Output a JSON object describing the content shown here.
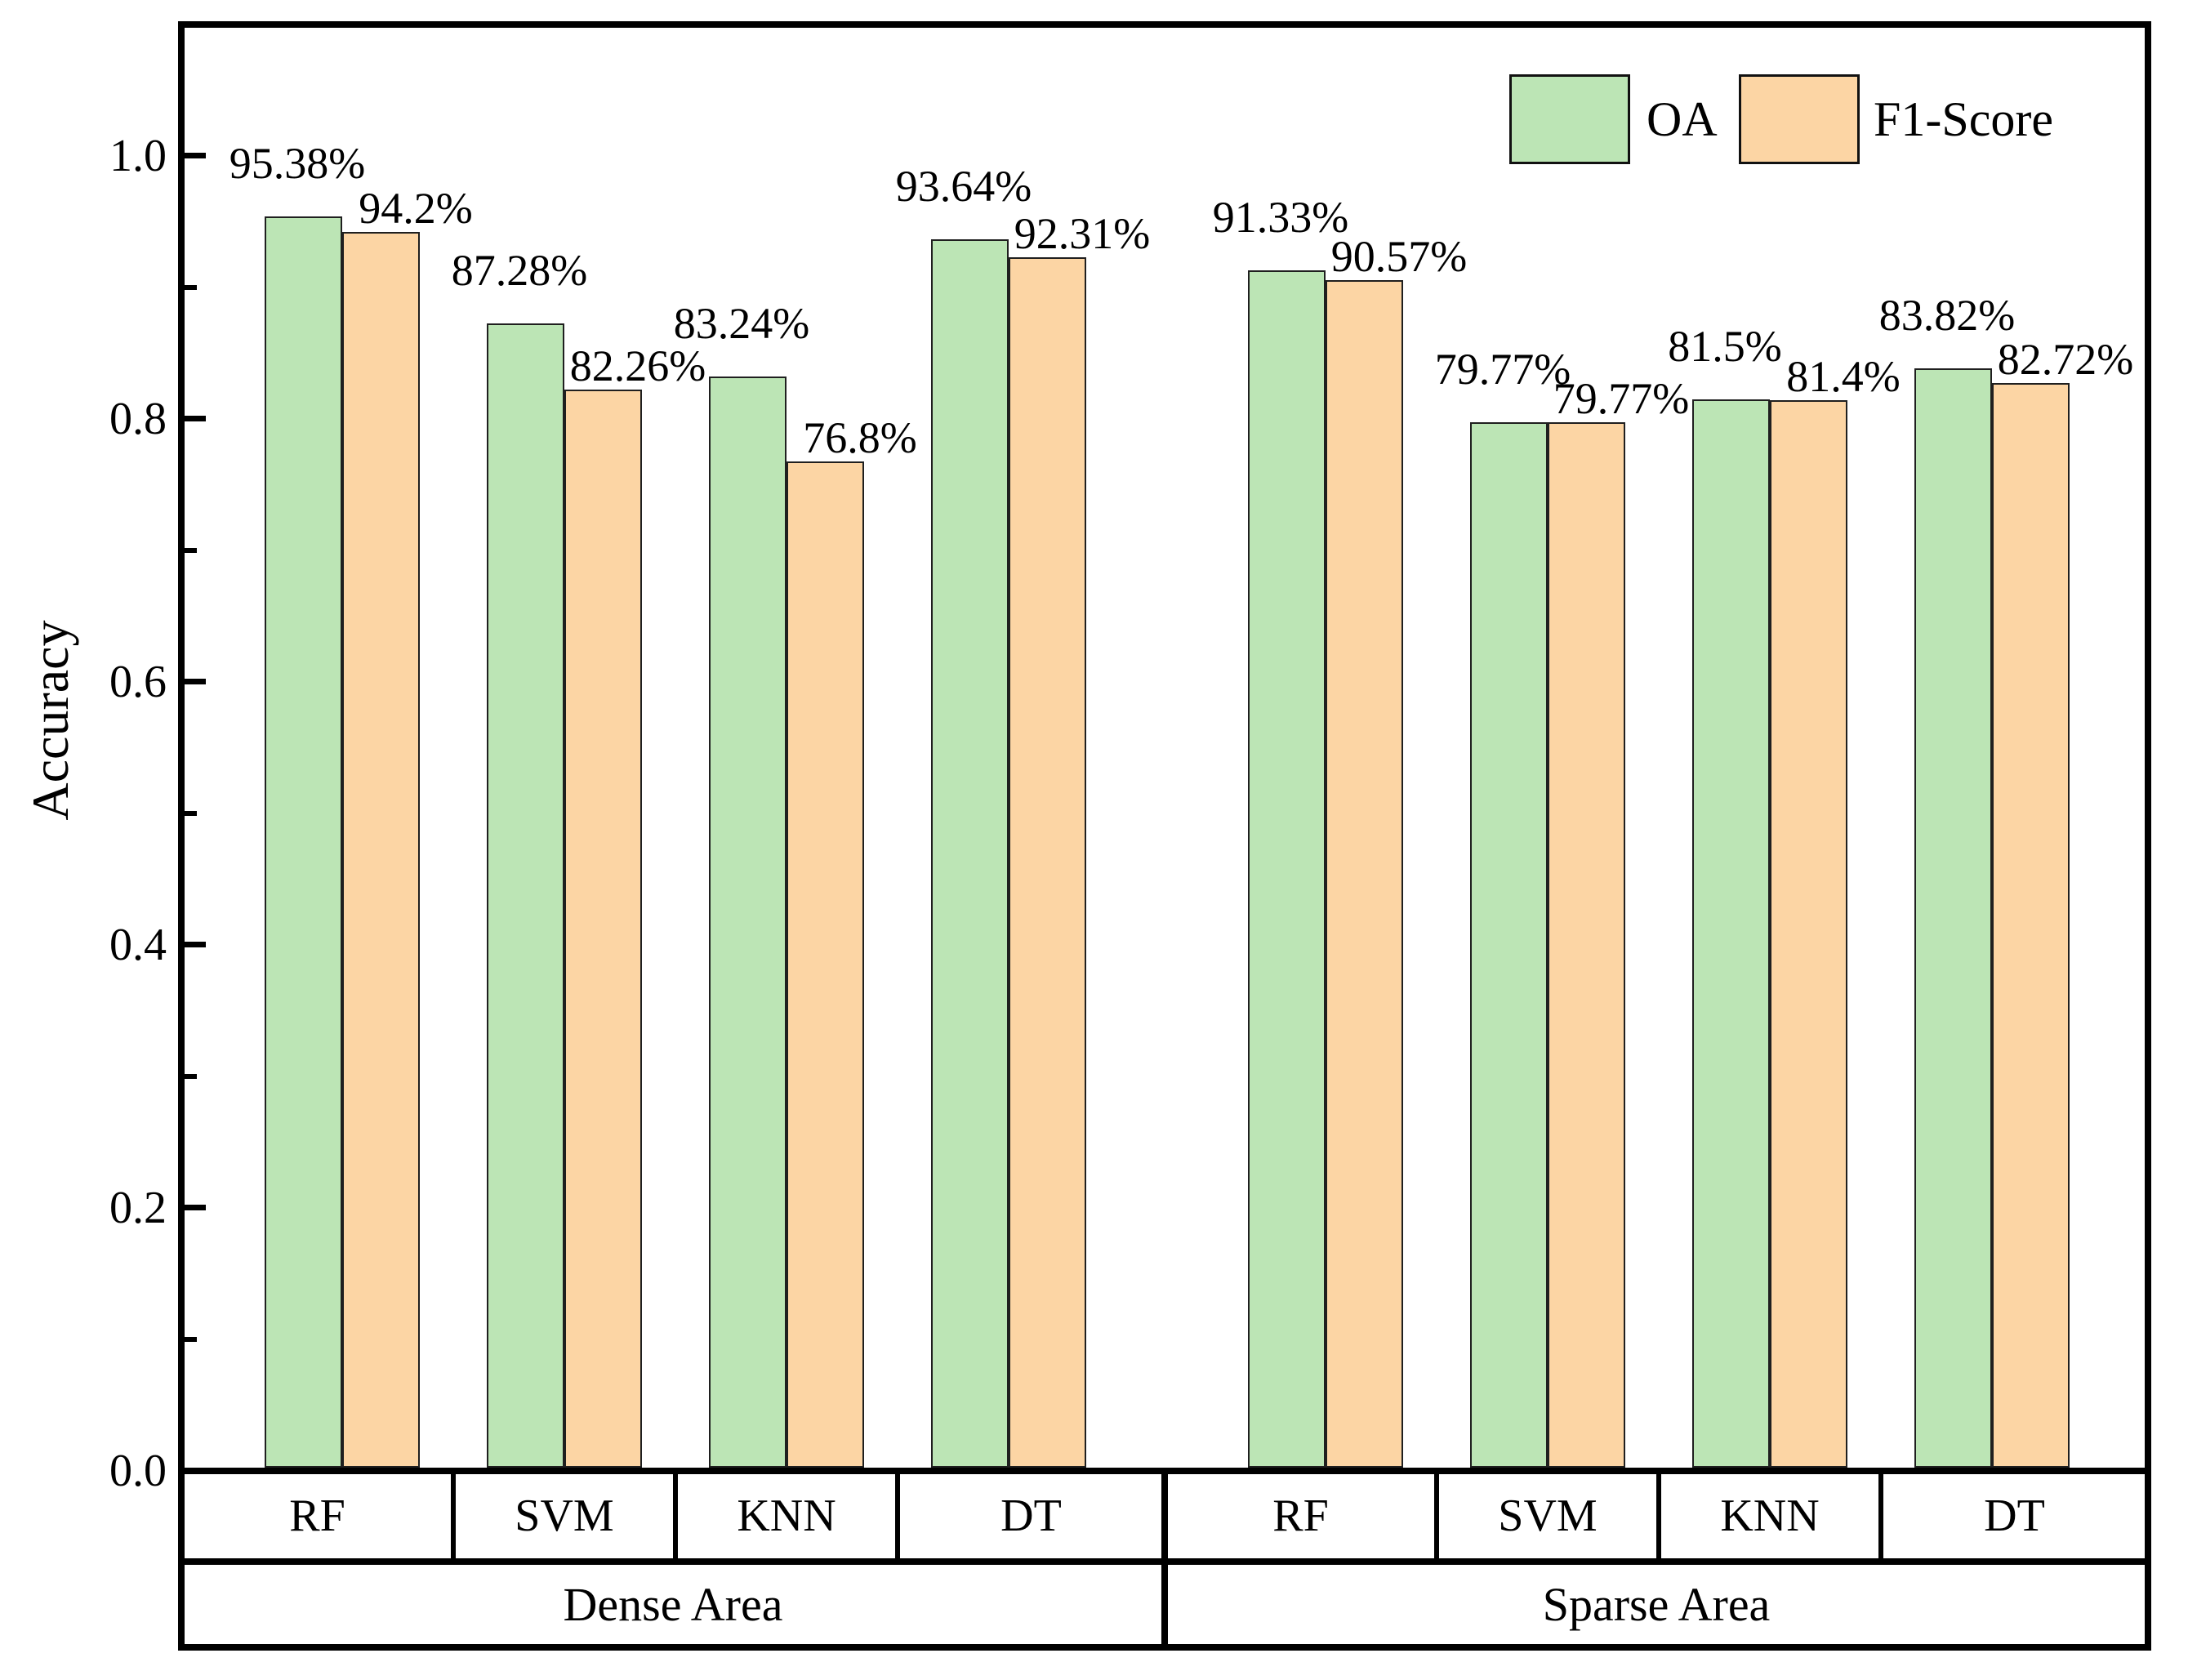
{
  "chart_data": {
    "type": "bar",
    "title": "",
    "ylabel": "Accuracy",
    "ylim": [
      0,
      1.1
    ],
    "yticks": [
      "0.0",
      "0.2",
      "0.4",
      "0.6",
      "0.8",
      "1.0"
    ],
    "ytick_values": [
      0,
      0.2,
      0.4,
      0.6,
      0.8,
      1.0
    ],
    "minor_tick_values": [
      0.1,
      0.3,
      0.5,
      0.7,
      0.9
    ],
    "grid": false,
    "legend_position": "top-right",
    "series_names": [
      "OA",
      "F1-Score"
    ],
    "colors": {
      "oa_fill": "#bce5b5",
      "f1_fill": "#fcd5a4",
      "bar_border": "#1f1f1f",
      "axis": "#000000"
    },
    "categories": [
      "RF",
      "SVM",
      "KNN",
      "DT",
      "RF",
      "SVM",
      "KNN",
      "DT"
    ],
    "areas": [
      {
        "label": "Dense Area",
        "span": 4
      },
      {
        "label": "Sparse Area",
        "span": 4
      }
    ],
    "groups": [
      {
        "area": "Dense Area",
        "algorithm": "RF",
        "oa": 0.9538,
        "oa_label": "95.38%",
        "f1": 0.942,
        "f1_label": "94.2%"
      },
      {
        "area": "Dense Area",
        "algorithm": "SVM",
        "oa": 0.8728,
        "oa_label": "87.28%",
        "f1": 0.8226,
        "f1_label": "82.26%"
      },
      {
        "area": "Dense Area",
        "algorithm": "KNN",
        "oa": 0.8324,
        "oa_label": "83.24%",
        "f1": 0.768,
        "f1_label": "76.8%"
      },
      {
        "area": "Dense Area",
        "algorithm": "DT",
        "oa": 0.9364,
        "oa_label": "93.64%",
        "f1": 0.9231,
        "f1_label": "92.31%"
      },
      {
        "area": "Sparse Area",
        "algorithm": "RF",
        "oa": 0.9133,
        "oa_label": "91.33%",
        "f1": 0.9057,
        "f1_label": "90.57%"
      },
      {
        "area": "Sparse Area",
        "algorithm": "SVM",
        "oa": 0.7977,
        "oa_label": "79.77%",
        "f1": 0.7977,
        "f1_label": "79.77%"
      },
      {
        "area": "Sparse Area",
        "algorithm": "KNN",
        "oa": 0.815,
        "oa_label": "81.5%",
        "f1": 0.814,
        "f1_label": "81.4%"
      },
      {
        "area": "Sparse Area",
        "algorithm": "DT",
        "oa": 0.8382,
        "oa_label": "83.82%",
        "f1": 0.8272,
        "f1_label": "82.72%"
      }
    ]
  }
}
